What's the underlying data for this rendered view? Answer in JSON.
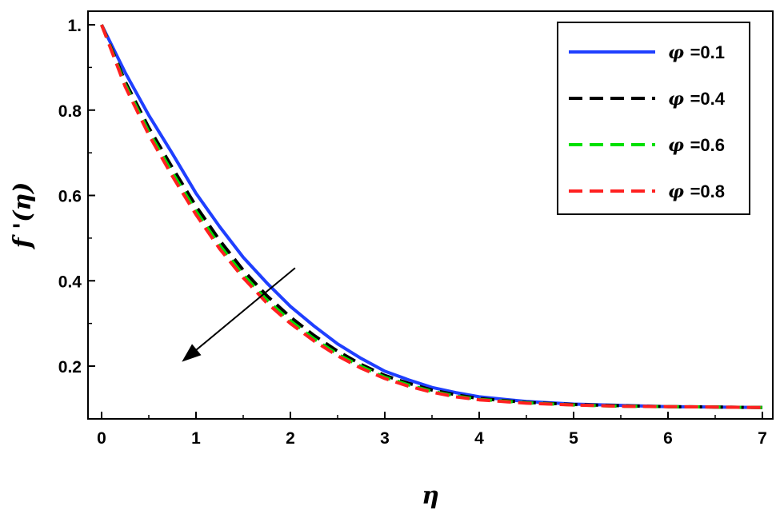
{
  "chart_data": {
    "type": "line",
    "title": "",
    "xlabel": "η",
    "ylabel": "f '(η)",
    "xlim": [
      0,
      7
    ],
    "ylim": [
      0.1,
      1.0
    ],
    "x_ticks": [
      0,
      1,
      2,
      3,
      4,
      5,
      6,
      7
    ],
    "x_tick_labels": [
      "0",
      "1",
      "2",
      "3",
      "4",
      "5",
      "6",
      "7"
    ],
    "y_ticks": [
      0.2,
      0.4,
      0.6,
      0.8,
      1.0
    ],
    "y_tick_labels": [
      "0.2",
      "0.4",
      "0.6",
      "0.8",
      "1."
    ],
    "grid": false,
    "legend_position": "top-right",
    "x": [
      0,
      0.25,
      0.5,
      0.75,
      1,
      1.25,
      1.5,
      1.75,
      2,
      2.25,
      2.5,
      2.75,
      3,
      3.25,
      3.5,
      3.75,
      4,
      4.5,
      5,
      5.5,
      6,
      6.5,
      7
    ],
    "series": [
      {
        "name": "φ =0.1",
        "symbol": "φ",
        "value_label": "=0.1",
        "color": "#1f3fff",
        "dash": "solid",
        "values": [
          1.0,
          0.888,
          0.788,
          0.698,
          0.605,
          0.527,
          0.455,
          0.395,
          0.34,
          0.294,
          0.252,
          0.218,
          0.188,
          0.168,
          0.15,
          0.138,
          0.128,
          0.117,
          0.111,
          0.108,
          0.105,
          0.104,
          0.103
        ]
      },
      {
        "name": "φ =0.4",
        "symbol": "φ",
        "value_label": "=0.4",
        "color": "#000000",
        "dash": "dashed",
        "values": [
          1.0,
          0.867,
          0.759,
          0.665,
          0.575,
          0.495,
          0.425,
          0.365,
          0.315,
          0.272,
          0.235,
          0.204,
          0.178,
          0.16,
          0.144,
          0.133,
          0.124,
          0.115,
          0.11,
          0.107,
          0.105,
          0.104,
          0.103
        ]
      },
      {
        "name": "φ =0.6",
        "symbol": "φ",
        "value_label": "=0.6",
        "color": "#00e000",
        "dash": "dashed",
        "values": [
          1.0,
          0.86,
          0.749,
          0.653,
          0.563,
          0.483,
          0.414,
          0.355,
          0.306,
          0.264,
          0.228,
          0.199,
          0.174,
          0.156,
          0.141,
          0.13,
          0.122,
          0.114,
          0.109,
          0.106,
          0.105,
          0.104,
          0.103
        ]
      },
      {
        "name": "φ =0.8",
        "symbol": "φ",
        "value_label": "=0.8",
        "color": "#ff2020",
        "dash": "dashed",
        "values": [
          1.0,
          0.855,
          0.742,
          0.645,
          0.555,
          0.475,
          0.407,
          0.348,
          0.3,
          0.259,
          0.224,
          0.195,
          0.171,
          0.153,
          0.139,
          0.128,
          0.121,
          0.113,
          0.109,
          0.106,
          0.105,
          0.104,
          0.103
        ]
      }
    ],
    "annotation": {
      "type": "arrow",
      "description_direction": "increasing φ",
      "from": [
        2.05,
        0.43
      ],
      "to": [
        0.85,
        0.21
      ]
    }
  }
}
